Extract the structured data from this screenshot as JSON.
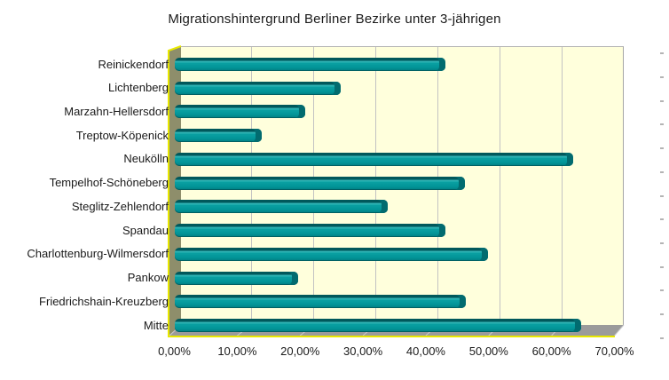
{
  "chart_data": {
    "type": "bar",
    "orientation": "horizontal",
    "title": "Migrationshintergrund Berliner Bezirke unter 3-jährigen",
    "categories": [
      "Reinickendorf",
      "Lichtenberg",
      "Marzahn-Hellersdorf",
      "Treptow-Köpenick",
      "Neukölln",
      "Tempelhof-Schöneberg",
      "Steglitz-Zehlendorf",
      "Spandau",
      "Charlottenburg-Wilmersdorf",
      "Pankow",
      "Friedrichshain-Kreuzberg",
      "Mitte"
    ],
    "values": [
      43.0,
      26.4,
      20.8,
      13.9,
      63.4,
      46.1,
      33.8,
      43.0,
      49.8,
      19.6,
      46.3,
      64.6
    ],
    "unit": "percent",
    "xlabel": "",
    "ylabel": "",
    "xlim": [
      0,
      70
    ],
    "x_tick_step": 10,
    "x_tick_labels": [
      "0,00%",
      "10,00%",
      "20,00%",
      "30,00%",
      "40,00%",
      "50,00%",
      "60,00%",
      "70,00%"
    ],
    "grid": true,
    "legend": false,
    "style": {
      "bar_color": "#029598",
      "bar_top_dark": "#01585b",
      "bar_cap_dark": "#026b6f",
      "wall_bg": "#FFFFDC",
      "wall_side": "#8E8E6B",
      "floor": "#9B9B9B",
      "edge_yellow": "#E8E800",
      "gridline": "#C3C3C3",
      "text": "#1A1A1A",
      "page_bg": "#FFFFFF"
    }
  }
}
